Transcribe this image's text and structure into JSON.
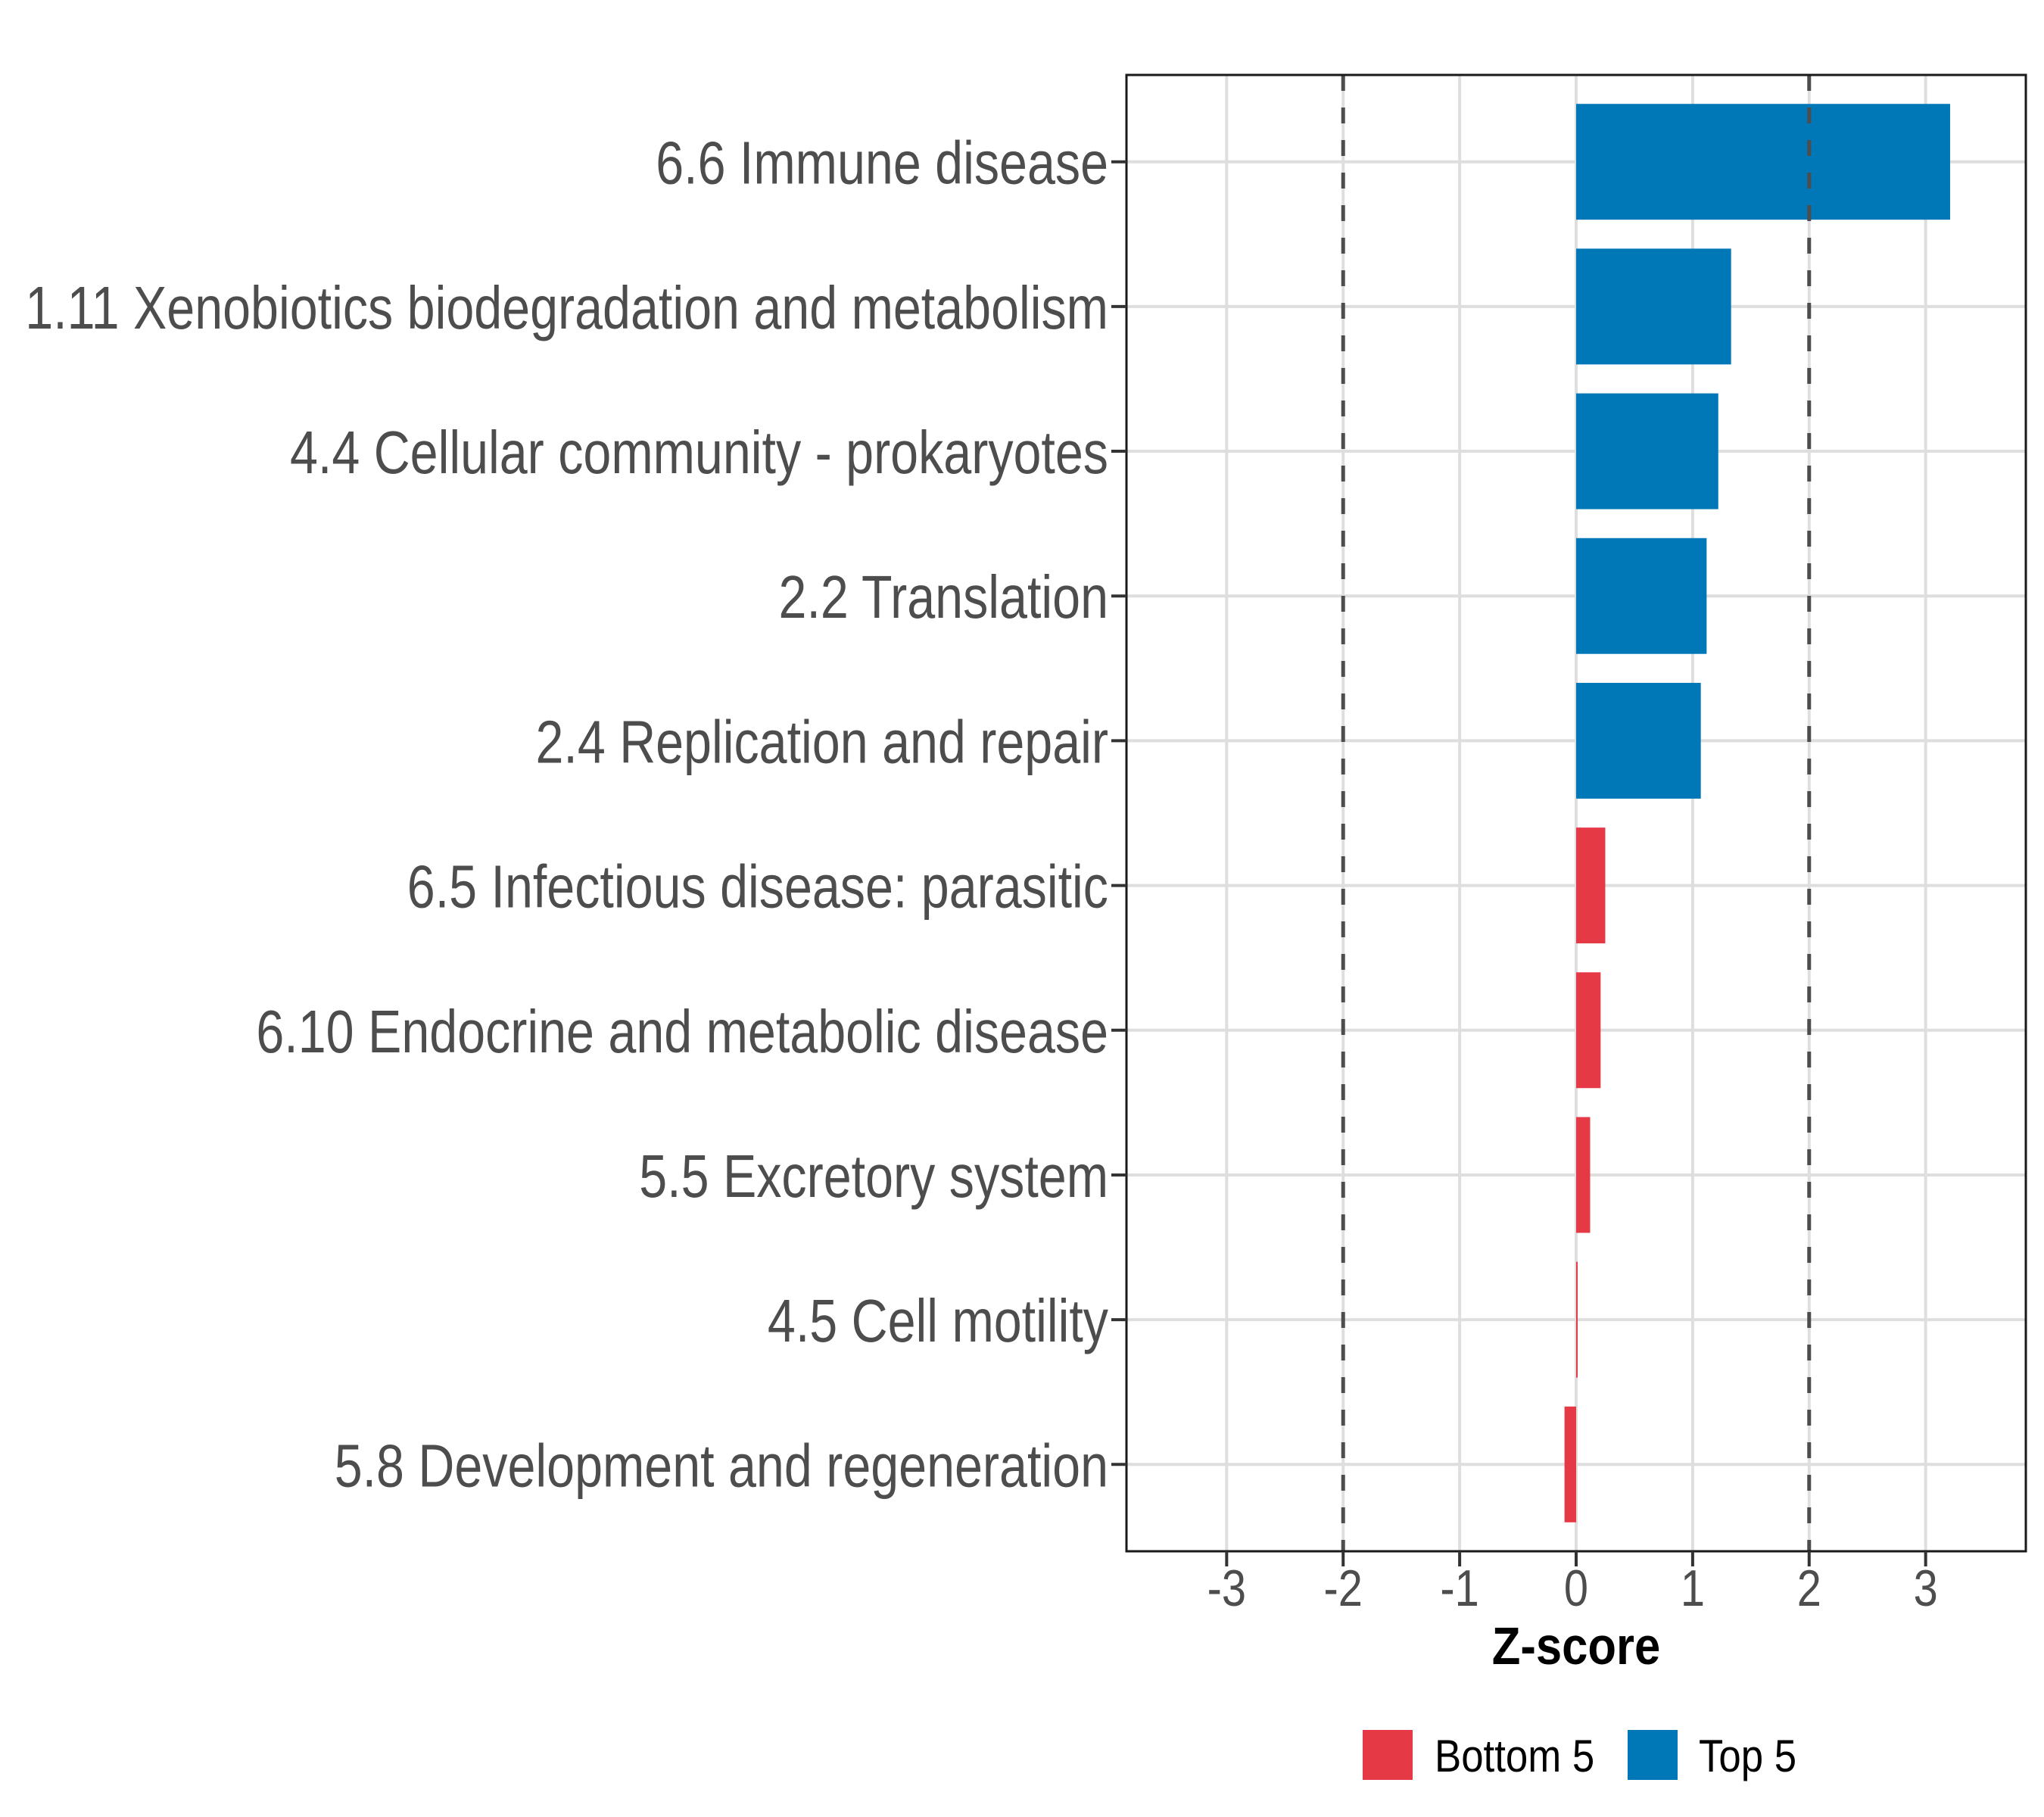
{
  "chart_data": {
    "type": "bar",
    "orientation": "horizontal",
    "title": "",
    "xlabel": "Z-score",
    "ylabel": "",
    "xlim": [
      -3.86,
      3.86
    ],
    "xticks": [
      -3,
      -2,
      -1,
      0,
      1,
      2,
      3
    ],
    "xtick_labels": [
      "-3",
      "-2",
      "-1",
      "0",
      "1",
      "2",
      "3"
    ],
    "reference_lines": [
      -2,
      2
    ],
    "reference_line_style": "dashed",
    "grid": true,
    "categories": [
      "6.6 Immune disease",
      "1.11 Xenobiotics biodegradation and metabolism",
      "4.4 Cellular community - prokaryotes",
      "2.2 Translation",
      "2.4 Replication and repair",
      "6.5 Infectious disease: parasitic",
      "6.10 Endocrine and metabolic disease",
      "5.5 Excretory system",
      "4.5 Cell motility",
      "5.8 Development and regeneration"
    ],
    "values": [
      3.21,
      1.33,
      1.22,
      1.12,
      1.07,
      0.25,
      0.21,
      0.12,
      0.01,
      -0.1
    ],
    "groups": [
      "Top 5",
      "Top 5",
      "Top 5",
      "Top 5",
      "Top 5",
      "Bottom 5",
      "Bottom 5",
      "Bottom 5",
      "Bottom 5",
      "Bottom 5"
    ],
    "legend": {
      "position": "bottom",
      "entries": [
        {
          "label": "Bottom 5",
          "color": "#E63946"
        },
        {
          "label": "Top 5",
          "color": "#0077B6"
        }
      ]
    },
    "colors": {
      "Top 5": "#0077B6",
      "Bottom 5": "#E63946"
    }
  }
}
